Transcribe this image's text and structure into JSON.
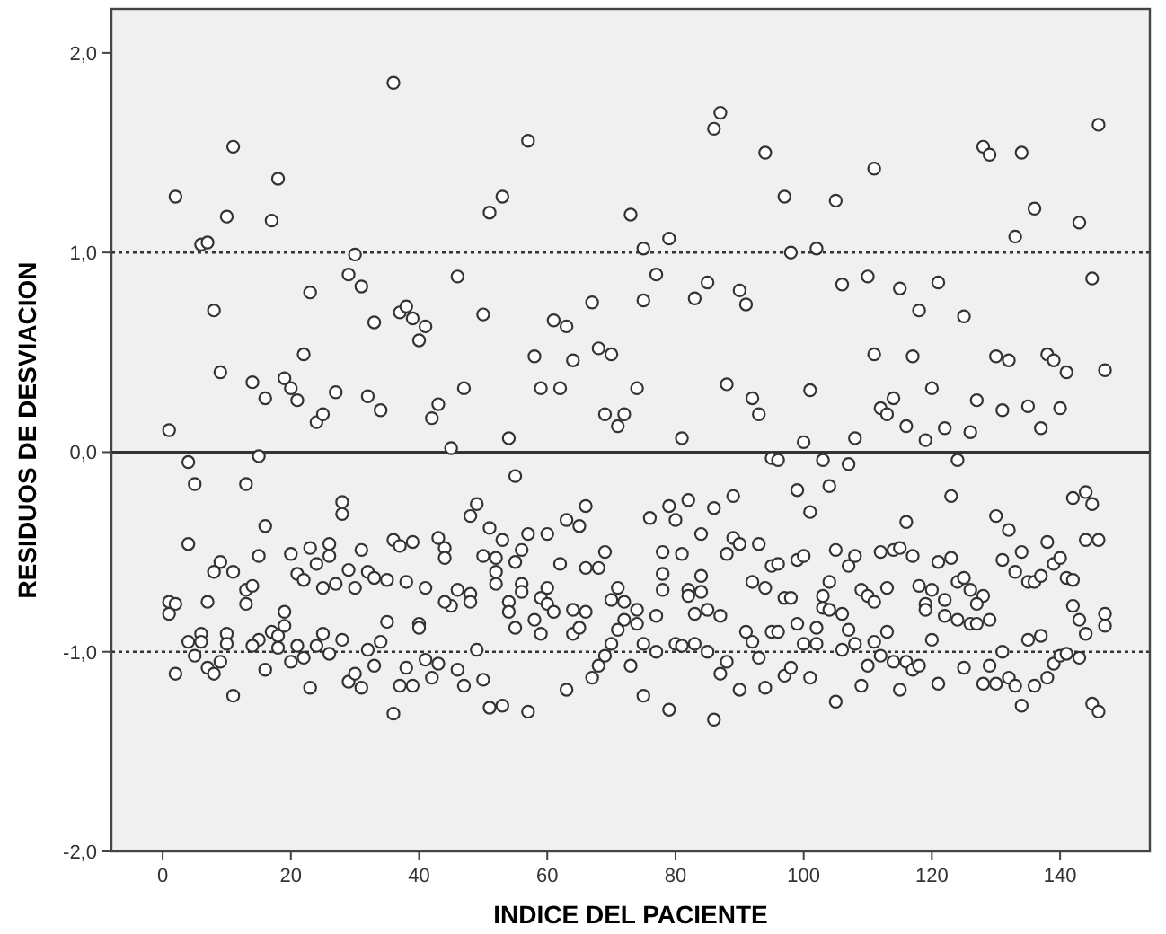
{
  "chart_data": {
    "type": "scatter",
    "xlabel": "INDICE DEL PACIENTE",
    "ylabel": "RESIDUOS DE DESVIACION",
    "xlim": [
      -8,
      154
    ],
    "ylim": [
      -2,
      2.22
    ],
    "xticks": [
      0,
      20,
      40,
      60,
      80,
      100,
      120,
      140
    ],
    "yticks": [
      {
        "value": -2,
        "label": "-2,0"
      },
      {
        "value": -1,
        "label": "-1,0"
      },
      {
        "value": 0,
        "label": "0,0"
      },
      {
        "value": 1,
        "label": "1,0"
      },
      {
        "value": 2,
        "label": "2,0"
      }
    ],
    "grid": false,
    "marker": "circle",
    "ref_lines": [
      {
        "axis": "y",
        "value": 1,
        "line_style": "dotted"
      },
      {
        "axis": "y",
        "value": 0,
        "line_style": "solid"
      },
      {
        "axis": "y",
        "value": -1,
        "line_style": "dotted"
      }
    ],
    "series": [
      {
        "color": "#333333",
        "x": [
          2,
          11,
          18,
          10,
          17,
          6,
          7,
          36,
          57,
          51,
          53,
          73,
          75,
          30,
          29,
          31,
          23,
          8,
          46,
          37,
          38,
          39,
          41,
          40,
          33,
          50,
          61,
          63,
          67,
          75,
          22,
          9,
          14,
          16,
          19,
          20,
          21,
          27,
          32,
          34,
          24,
          25,
          1,
          4,
          15,
          42,
          43,
          47,
          45,
          54,
          58,
          59,
          62,
          64,
          68,
          70,
          74,
          69,
          72,
          71,
          87,
          86,
          94,
          97,
          105,
          111,
          79,
          77,
          83,
          85,
          90,
          91,
          98,
          102,
          106,
          110,
          115,
          121,
          118,
          125,
          128,
          129,
          134,
          136,
          133,
          143,
          146,
          145,
          111,
          117,
          130,
          132,
          138,
          139,
          141,
          147,
          88,
          92,
          93,
          101,
          120,
          112,
          113,
          114,
          116,
          119,
          122,
          126,
          127,
          131,
          135,
          137,
          140,
          81,
          100,
          108,
          95,
          96,
          103,
          107,
          124,
          5,
          13,
          4,
          16,
          55,
          28,
          28,
          49,
          48,
          51,
          53,
          57,
          60,
          63,
          65,
          66,
          43,
          44,
          44,
          36,
          37,
          39,
          26,
          26,
          23,
          24,
          20,
          21,
          22,
          15,
          9,
          8,
          11,
          13,
          14,
          13,
          1,
          2,
          1,
          7,
          31,
          29,
          32,
          33,
          35,
          38,
          41,
          25,
          27,
          30,
          50,
          52,
          52,
          52,
          56,
          55,
          60,
          62,
          66,
          68,
          69,
          71,
          56,
          56,
          46,
          48,
          48,
          45,
          44,
          54,
          54,
          55,
          59,
          60,
          61,
          64,
          66,
          58,
          59,
          64,
          65,
          70,
          72,
          74,
          72,
          71,
          74,
          19,
          19,
          17,
          18,
          18,
          15,
          14,
          6,
          6,
          4,
          5,
          10,
          10,
          9,
          7,
          8,
          2,
          11,
          16,
          21,
          20,
          22,
          24,
          25,
          26,
          28,
          23,
          29,
          30,
          31,
          32,
          33,
          34,
          35,
          36,
          37,
          38,
          39,
          40,
          40,
          41,
          42,
          43,
          46,
          47,
          49,
          50,
          51,
          53,
          57,
          63,
          67,
          68,
          69,
          70,
          73,
          75,
          75,
          99,
          101,
          104,
          76,
          79,
          80,
          82,
          86,
          89,
          84,
          89,
          90,
          88,
          93,
          78,
          81,
          78,
          78,
          84,
          82,
          82,
          84,
          77,
          83,
          85,
          87,
          95,
          96,
          99,
          100,
          92,
          94,
          97,
          98,
          105,
          104,
          103,
          103,
          104,
          106,
          107,
          108,
          109,
          110,
          111,
          113,
          112,
          114,
          115,
          117,
          116,
          121,
          123,
          123,
          118,
          120,
          119,
          119,
          122,
          122,
          124,
          125,
          126,
          128,
          127,
          124,
          126,
          127,
          129,
          130,
          132,
          131,
          134,
          133,
          135,
          136,
          137,
          138,
          139,
          140,
          141,
          142,
          142,
          144,
          145,
          144,
          146,
          142,
          143,
          144,
          147,
          147,
          145,
          146,
          79,
          86,
          87,
          88,
          90,
          94,
          77,
          80,
          81,
          83,
          85,
          91,
          92,
          93,
          95,
          96,
          97,
          98,
          99,
          100,
          102,
          102,
          101,
          105,
          106,
          107,
          108,
          109,
          110,
          111,
          112,
          113,
          114,
          115,
          116,
          117,
          118,
          120,
          121,
          125,
          128,
          129,
          130,
          131,
          132,
          133,
          134,
          135,
          136,
          137,
          138,
          139,
          140,
          141,
          143
        ],
        "values": [
          1.28,
          1.53,
          1.37,
          1.18,
          1.16,
          1.04,
          1.05,
          1.85,
          1.56,
          1.2,
          1.28,
          1.19,
          1.02,
          0.99,
          0.89,
          0.83,
          0.8,
          0.71,
          0.88,
          0.7,
          0.73,
          0.67,
          0.63,
          0.56,
          0.65,
          0.69,
          0.66,
          0.63,
          0.75,
          0.76,
          0.49,
          0.4,
          0.35,
          0.27,
          0.37,
          0.32,
          0.26,
          0.3,
          0.28,
          0.21,
          0.15,
          0.19,
          0.11,
          -0.05,
          -0.02,
          0.17,
          0.24,
          0.32,
          0.02,
          0.07,
          0.48,
          0.32,
          0.32,
          0.46,
          0.52,
          0.49,
          0.32,
          0.19,
          0.19,
          0.13,
          1.7,
          1.62,
          1.5,
          1.28,
          1.26,
          1.42,
          1.07,
          0.89,
          0.77,
          0.85,
          0.81,
          0.74,
          1.0,
          1.02,
          0.84,
          0.88,
          0.82,
          0.85,
          0.71,
          0.68,
          1.53,
          1.49,
          1.5,
          1.22,
          1.08,
          1.15,
          1.64,
          0.87,
          0.49,
          0.48,
          0.48,
          0.46,
          0.49,
          0.46,
          0.4,
          0.41,
          0.34,
          0.27,
          0.19,
          0.31,
          0.32,
          0.22,
          0.19,
          0.27,
          0.13,
          0.06,
          0.12,
          0.1,
          0.26,
          0.21,
          0.23,
          0.12,
          0.22,
          0.07,
          0.05,
          0.07,
          -0.03,
          -0.04,
          -0.04,
          -0.06,
          -0.04,
          -0.16,
          -0.16,
          -0.46,
          -0.37,
          -0.12,
          -0.25,
          -0.31,
          -0.26,
          -0.32,
          -0.38,
          -0.44,
          -0.41,
          -0.41,
          -0.34,
          -0.37,
          -0.27,
          -0.43,
          -0.48,
          -0.53,
          -0.44,
          -0.47,
          -0.45,
          -0.46,
          -0.52,
          -0.48,
          -0.56,
          -0.51,
          -0.61,
          -0.64,
          -0.52,
          -0.55,
          -0.6,
          -0.6,
          -0.69,
          -0.67,
          -0.76,
          -0.75,
          -0.76,
          -0.81,
          -0.75,
          -0.49,
          -0.59,
          -0.6,
          -0.63,
          -0.64,
          -0.65,
          -0.68,
          -0.68,
          -0.66,
          -0.68,
          -0.52,
          -0.53,
          -0.6,
          -0.66,
          -0.49,
          -0.55,
          -0.68,
          -0.56,
          -0.58,
          -0.58,
          -0.5,
          -0.68,
          -0.66,
          -0.7,
          -0.69,
          -0.71,
          -0.75,
          -0.77,
          -0.75,
          -0.75,
          -0.8,
          -0.88,
          -0.73,
          -0.76,
          -0.8,
          -0.79,
          -0.8,
          -0.84,
          -0.91,
          -0.91,
          -0.88,
          -0.74,
          -0.75,
          -0.79,
          -0.84,
          -0.89,
          -0.86,
          -0.8,
          -0.87,
          -0.9,
          -0.92,
          -0.98,
          -0.94,
          -0.97,
          -0.91,
          -0.95,
          -0.95,
          -1.02,
          -0.91,
          -0.96,
          -1.05,
          -1.08,
          -1.11,
          -1.11,
          -1.22,
          -1.09,
          -0.97,
          -1.05,
          -1.03,
          -0.97,
          -0.91,
          -1.01,
          -0.94,
          -1.18,
          -1.15,
          -1.11,
          -1.18,
          -0.99,
          -1.07,
          -0.95,
          -0.85,
          -1.31,
          -1.17,
          -1.08,
          -1.17,
          -0.86,
          -0.88,
          -1.04,
          -1.13,
          -1.06,
          -1.09,
          -1.17,
          -0.99,
          -1.14,
          -1.28,
          -1.27,
          -1.3,
          -1.19,
          -1.13,
          -1.07,
          -1.02,
          -0.96,
          -1.07,
          -0.96,
          -1.22,
          -0.19,
          -0.3,
          -0.17,
          -0.33,
          -0.27,
          -0.34,
          -0.24,
          -0.28,
          -0.22,
          -0.41,
          -0.43,
          -0.46,
          -0.51,
          -0.46,
          -0.5,
          -0.51,
          -0.61,
          -0.69,
          -0.62,
          -0.69,
          -0.72,
          -0.7,
          -0.82,
          -0.81,
          -0.79,
          -0.82,
          -0.57,
          -0.56,
          -0.54,
          -0.52,
          -0.65,
          -0.68,
          -0.73,
          -0.73,
          -0.49,
          -0.65,
          -0.72,
          -0.78,
          -0.79,
          -0.81,
          -0.57,
          -0.52,
          -0.69,
          -0.72,
          -0.75,
          -0.68,
          -0.5,
          -0.49,
          -0.48,
          -0.52,
          -0.35,
          -0.55,
          -0.53,
          -0.22,
          -0.67,
          -0.69,
          -0.76,
          -0.79,
          -0.74,
          -0.82,
          -0.65,
          -0.63,
          -0.69,
          -0.72,
          -0.76,
          -0.84,
          -0.86,
          -0.86,
          -0.84,
          -0.32,
          -0.39,
          -0.54,
          -0.5,
          -0.6,
          -0.65,
          -0.65,
          -0.62,
          -0.45,
          -0.56,
          -0.53,
          -0.63,
          -0.64,
          -0.23,
          -0.2,
          -0.26,
          -0.44,
          -0.44,
          -0.77,
          -0.84,
          -0.91,
          -0.81,
          -0.87,
          -1.26,
          -1.3,
          -1.29,
          -1.34,
          -1.11,
          -1.05,
          -1.19,
          -1.18,
          -1.0,
          -0.96,
          -0.97,
          -0.96,
          -1.0,
          -0.9,
          -0.95,
          -1.03,
          -0.9,
          -0.9,
          -1.12,
          -1.08,
          -0.86,
          -0.96,
          -0.88,
          -0.96,
          -1.13,
          -1.25,
          -0.99,
          -0.89,
          -0.96,
          -1.17,
          -1.07,
          -0.95,
          -1.02,
          -0.9,
          -1.05,
          -1.19,
          -1.05,
          -1.09,
          -1.07,
          -0.94,
          -1.16,
          -1.08,
          -1.16,
          -1.07,
          -1.16,
          -1.0,
          -1.13,
          -1.17,
          -1.27,
          -0.94,
          -1.17,
          -0.92,
          -1.13,
          -1.06,
          -1.02,
          -1.01,
          -1.03
        ]
      }
    ]
  }
}
